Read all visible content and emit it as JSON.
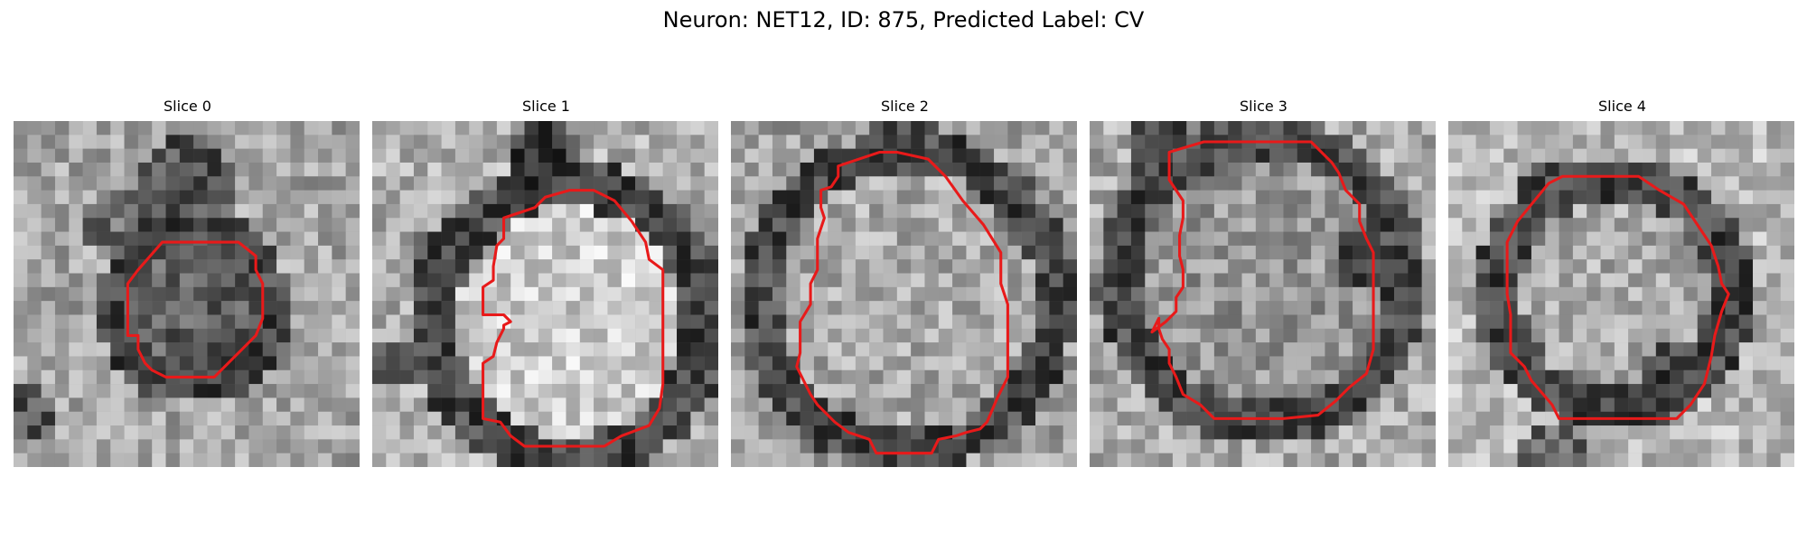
{
  "figure": {
    "title": "Neuron: NET12, ID: 875, Predicted Label: CV"
  },
  "slices": [
    {
      "label": "Slice 0"
    },
    {
      "label": "Slice 1"
    },
    {
      "label": "Slice 2"
    },
    {
      "label": "Slice 3"
    },
    {
      "label": "Slice 4"
    }
  ],
  "colors": {
    "contour": "#e81a1a",
    "background": "#ffffff"
  }
}
